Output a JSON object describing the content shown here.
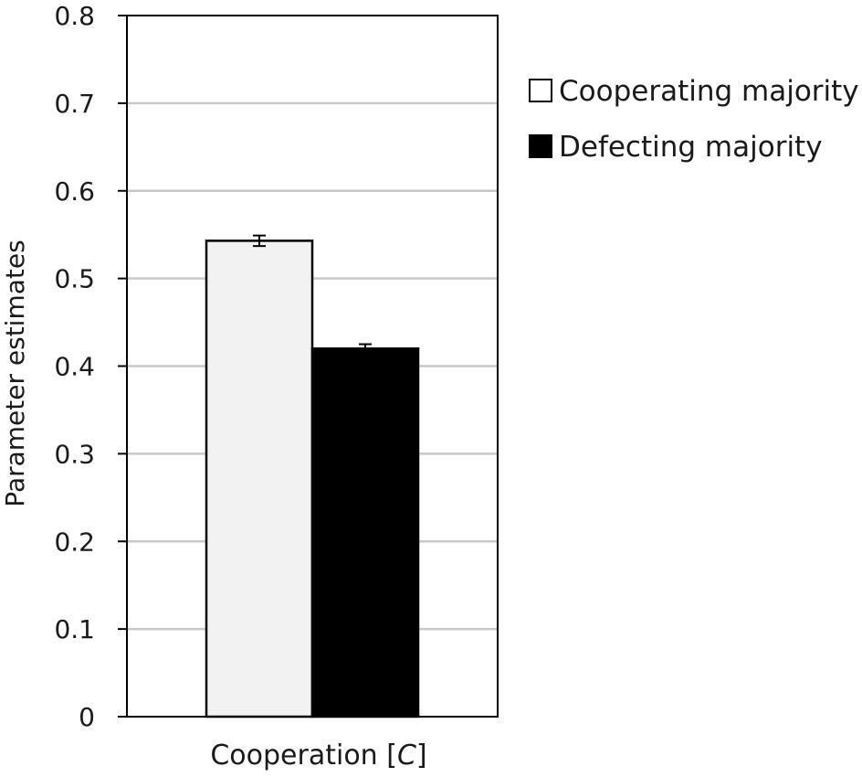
{
  "chart_data": {
    "type": "bar",
    "categories": [
      "Cooperation [C]"
    ],
    "category_label_parts": {
      "main": "Cooperation [",
      "italic": "C",
      "end": "]"
    },
    "series": [
      {
        "name": "Cooperating majority",
        "values": [
          0.543
        ],
        "error": [
          0.006
        ],
        "color": "#f2f2f2"
      },
      {
        "name": "Defecting majority",
        "values": [
          0.42
        ],
        "error": [
          0.005
        ],
        "color": "#000000"
      }
    ],
    "ylabel": "Parameter estimates",
    "xlabel": "",
    "ylim": [
      0,
      0.8
    ],
    "yticks": [
      0,
      0.1,
      0.2,
      0.3,
      0.4,
      0.5,
      0.6,
      0.7,
      0.8
    ],
    "ytick_labels": [
      "0",
      "0.1",
      "0.2",
      "0.3",
      "0.4",
      "0.5",
      "0.6",
      "0.7",
      "0.8"
    ],
    "grid": true,
    "legend_position": "right"
  }
}
